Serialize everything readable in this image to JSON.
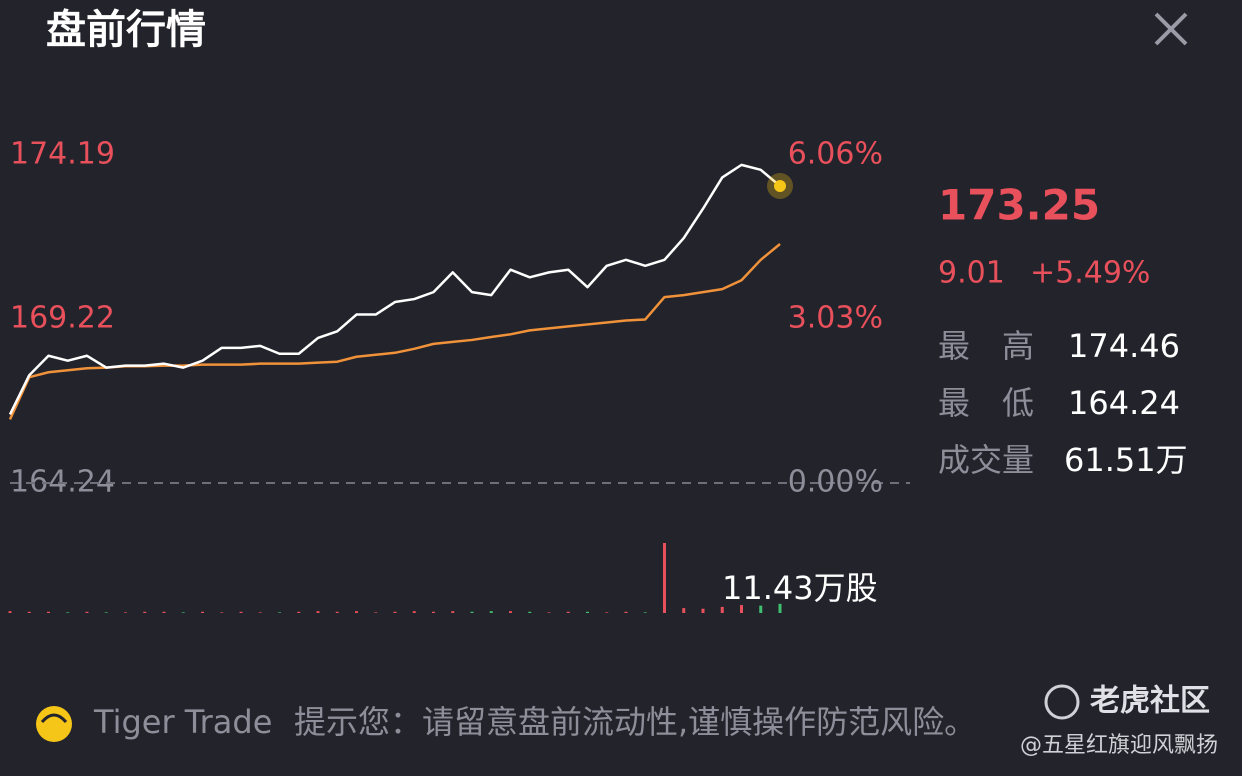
{
  "header": {
    "title": "盘前行情"
  },
  "chart_data": {
    "type": "line",
    "ylim": [
      164.24,
      174.19
    ],
    "yticks": [
      174.19,
      169.22,
      164.24
    ],
    "y2lim": [
      0,
      6.06
    ],
    "y2ticks": [
      {
        "value": 6.06,
        "label": "6.06%"
      },
      {
        "value": 3.03,
        "label": "3.03%"
      },
      {
        "value": 0,
        "label": "0.00%"
      }
    ],
    "series": [
      {
        "name": "price",
        "color": "#ffffff",
        "values": [
          166.32,
          167.51,
          168.1,
          167.95,
          168.1,
          167.74,
          167.8,
          167.8,
          167.86,
          167.74,
          167.95,
          168.34,
          168.34,
          168.4,
          168.16,
          168.16,
          168.64,
          168.84,
          169.35,
          169.35,
          169.73,
          169.82,
          170.03,
          170.63,
          170.03,
          169.94,
          170.71,
          170.48,
          170.63,
          170.71,
          170.18,
          170.83,
          171.01,
          170.83,
          171.01,
          171.67,
          172.56,
          173.51,
          173.89,
          173.74,
          173.25
        ]
      },
      {
        "name": "average",
        "color": "#f0923a",
        "values": [
          166.17,
          167.45,
          167.6,
          167.66,
          167.72,
          167.74,
          167.78,
          167.78,
          167.8,
          167.8,
          167.83,
          167.83,
          167.83,
          167.86,
          167.86,
          167.86,
          167.89,
          167.92,
          168.07,
          168.13,
          168.19,
          168.31,
          168.46,
          168.52,
          168.58,
          168.67,
          168.75,
          168.87,
          168.93,
          168.99,
          169.05,
          169.11,
          169.17,
          169.2,
          169.88,
          169.94,
          170.03,
          170.12,
          170.39,
          171.01,
          171.49
        ]
      }
    ],
    "volume": [
      0.3,
      0.2,
      0.2,
      0.1,
      0.2,
      0.1,
      0.1,
      0.2,
      0.2,
      0.1,
      0.2,
      0.1,
      0.2,
      0.1,
      0.1,
      0.2,
      0.3,
      0.2,
      0.3,
      0.1,
      0.2,
      0.3,
      0.2,
      0.3,
      0.2,
      0.3,
      0.3,
      0.2,
      0.1,
      0.2,
      0.2,
      0.1,
      0.2,
      0.1,
      11.43,
      0.8,
      0.7,
      1.0,
      1.3,
      1.2,
      1.5
    ],
    "volume_annotation": "11.43万股"
  },
  "quote": {
    "price": "173.25",
    "change": "9.01",
    "change_pct": "+5.49%",
    "stats": [
      {
        "label": "最　高",
        "value": "174.46"
      },
      {
        "label": "最　低",
        "value": "164.24"
      },
      {
        "label": "成交量",
        "value": "61.51万"
      }
    ]
  },
  "footer": {
    "brand": "Tiger Trade",
    "notice": "提示您：请留意盘前流动性,谨慎操作防范风险。",
    "watermark": "老虎社区",
    "author": "@五星红旗迎风飘扬"
  }
}
